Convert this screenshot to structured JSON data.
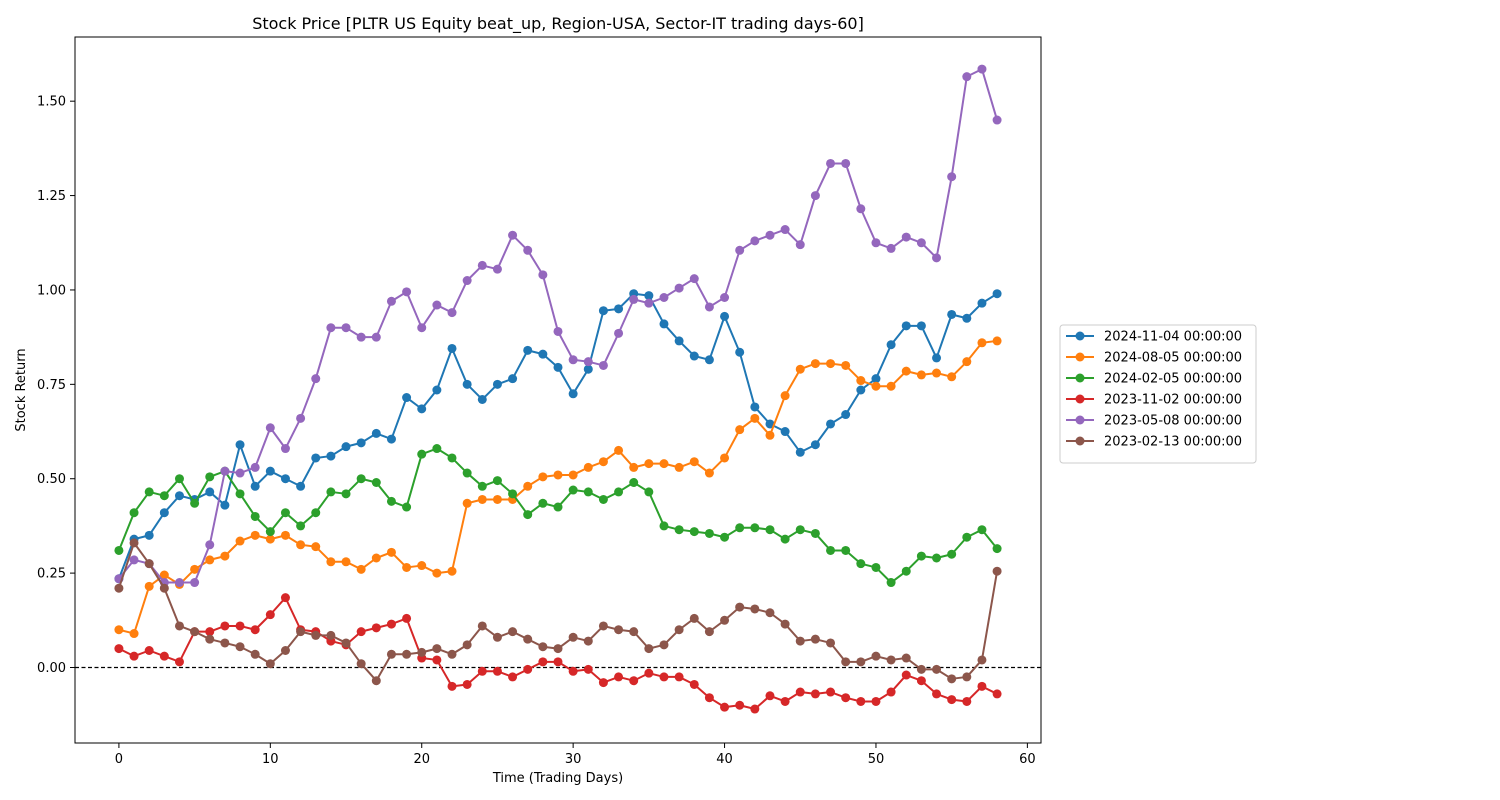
{
  "chart_data": {
    "type": "line",
    "title": "Stock Price [PLTR US Equity beat_up, Region-USA, Sector-IT trading days-60]",
    "xlabel": "Time (Trading Days)",
    "ylabel": "Stock Return",
    "xlim": [
      -2.9,
      60.9
    ],
    "ylim": [
      -0.2,
      1.67
    ],
    "xticks": [
      0,
      10,
      20,
      30,
      40,
      50,
      60
    ],
    "xtick_labels": [
      "0",
      "10",
      "20",
      "30",
      "40",
      "50",
      "60"
    ],
    "yticks": [
      0,
      0.25,
      0.5,
      0.75,
      1.0,
      1.25,
      1.5
    ],
    "ytick_labels": [
      "0.00",
      "0.25",
      "0.50",
      "0.75",
      "1.00",
      "1.25",
      "1.50"
    ],
    "reference_line": {
      "y": 0,
      "style": "dashed",
      "color": "#000000"
    },
    "grid": false,
    "legend_position": "right",
    "series": [
      {
        "name": "2024-11-04 00:00:00",
        "color": "#1f77b4",
        "values": [
          0.235,
          0.34,
          0.35,
          0.41,
          0.455,
          0.445,
          0.465,
          0.43,
          0.59,
          0.48,
          0.52,
          0.5,
          0.48,
          0.555,
          0.56,
          0.585,
          0.595,
          0.62,
          0.605,
          0.715,
          0.685,
          0.735,
          0.845,
          0.75,
          0.71,
          0.75,
          0.765,
          0.84,
          0.83,
          0.795,
          0.725,
          0.79,
          0.945,
          0.95,
          0.99,
          0.985,
          0.91,
          0.865,
          0.825,
          0.815,
          0.93,
          0.835,
          0.69,
          0.645,
          0.625,
          0.57,
          0.59,
          0.645,
          0.67,
          0.735,
          0.765,
          0.855,
          0.905,
          0.905,
          0.82,
          0.935,
          0.925,
          0.965,
          0.99
        ]
      },
      {
        "name": "2024-08-05 00:00:00",
        "color": "#ff7f0e",
        "values": [
          0.1,
          0.09,
          0.215,
          0.245,
          0.22,
          0.26,
          0.285,
          0.295,
          0.335,
          0.35,
          0.34,
          0.35,
          0.325,
          0.32,
          0.28,
          0.28,
          0.26,
          0.29,
          0.305,
          0.265,
          0.27,
          0.25,
          0.255,
          0.435,
          0.445,
          0.445,
          0.445,
          0.48,
          0.505,
          0.51,
          0.51,
          0.53,
          0.545,
          0.575,
          0.53,
          0.54,
          0.54,
          0.53,
          0.545,
          0.515,
          0.555,
          0.63,
          0.66,
          0.615,
          0.72,
          0.79,
          0.805,
          0.805,
          0.8,
          0.76,
          0.745,
          0.745,
          0.785,
          0.775,
          0.78,
          0.77,
          0.81,
          0.86,
          0.865
        ]
      },
      {
        "name": "2024-02-05 00:00:00",
        "color": "#2ca02c",
        "values": [
          0.31,
          0.41,
          0.465,
          0.455,
          0.5,
          0.435,
          0.505,
          0.52,
          0.46,
          0.4,
          0.36,
          0.41,
          0.375,
          0.41,
          0.465,
          0.46,
          0.5,
          0.49,
          0.44,
          0.425,
          0.565,
          0.58,
          0.555,
          0.515,
          0.48,
          0.495,
          0.46,
          0.405,
          0.435,
          0.425,
          0.47,
          0.465,
          0.445,
          0.465,
          0.49,
          0.465,
          0.375,
          0.365,
          0.36,
          0.355,
          0.345,
          0.37,
          0.37,
          0.365,
          0.34,
          0.365,
          0.355,
          0.31,
          0.31,
          0.275,
          0.265,
          0.225,
          0.255,
          0.295,
          0.29,
          0.3,
          0.345,
          0.365,
          0.315
        ]
      },
      {
        "name": "2023-11-02 00:00:00",
        "color": "#d62728",
        "values": [
          0.05,
          0.03,
          0.045,
          0.03,
          0.015,
          0.095,
          0.095,
          0.11,
          0.11,
          0.1,
          0.14,
          0.185,
          0.1,
          0.095,
          0.07,
          0.06,
          0.095,
          0.105,
          0.115,
          0.13,
          0.025,
          0.02,
          -0.05,
          -0.045,
          -0.01,
          -0.01,
          -0.025,
          -0.005,
          0.015,
          0.015,
          -0.01,
          -0.005,
          -0.04,
          -0.025,
          -0.035,
          -0.015,
          -0.025,
          -0.025,
          -0.045,
          -0.08,
          -0.105,
          -0.1,
          -0.11,
          -0.075,
          -0.09,
          -0.065,
          -0.07,
          -0.065,
          -0.08,
          -0.09,
          -0.09,
          -0.065,
          -0.02,
          -0.035,
          -0.07,
          -0.085,
          -0.09,
          -0.05,
          -0.07
        ]
      },
      {
        "name": "2023-05-08 00:00:00",
        "color": "#9467bd",
        "values": [
          0.235,
          0.285,
          0.275,
          0.225,
          0.225,
          0.225,
          0.325,
          0.52,
          0.515,
          0.53,
          0.635,
          0.58,
          0.66,
          0.765,
          0.9,
          0.9,
          0.875,
          0.875,
          0.97,
          0.995,
          0.9,
          0.96,
          0.94,
          1.025,
          1.065,
          1.055,
          1.145,
          1.105,
          1.04,
          0.89,
          0.815,
          0.81,
          0.8,
          0.885,
          0.975,
          0.965,
          0.98,
          1.005,
          1.03,
          0.955,
          0.98,
          1.105,
          1.13,
          1.145,
          1.16,
          1.12,
          1.25,
          1.335,
          1.335,
          1.215,
          1.125,
          1.11,
          1.14,
          1.125,
          1.085,
          1.3,
          1.565,
          1.585,
          1.45
        ]
      },
      {
        "name": "2023-02-13 00:00:00",
        "color": "#8c564b",
        "values": [
          0.21,
          0.33,
          0.275,
          0.21,
          0.11,
          0.095,
          0.075,
          0.065,
          0.055,
          0.035,
          0.01,
          0.045,
          0.095,
          0.085,
          0.085,
          0.065,
          0.01,
          -0.035,
          0.035,
          0.035,
          0.04,
          0.05,
          0.035,
          0.06,
          0.11,
          0.08,
          0.095,
          0.075,
          0.055,
          0.05,
          0.08,
          0.07,
          0.11,
          0.1,
          0.095,
          0.05,
          0.06,
          0.1,
          0.13,
          0.095,
          0.125,
          0.16,
          0.155,
          0.145,
          0.115,
          0.07,
          0.075,
          0.065,
          0.015,
          0.015,
          0.03,
          0.02,
          0.025,
          -0.005,
          -0.005,
          -0.03,
          -0.025,
          0.02,
          0.255
        ]
      }
    ]
  }
}
